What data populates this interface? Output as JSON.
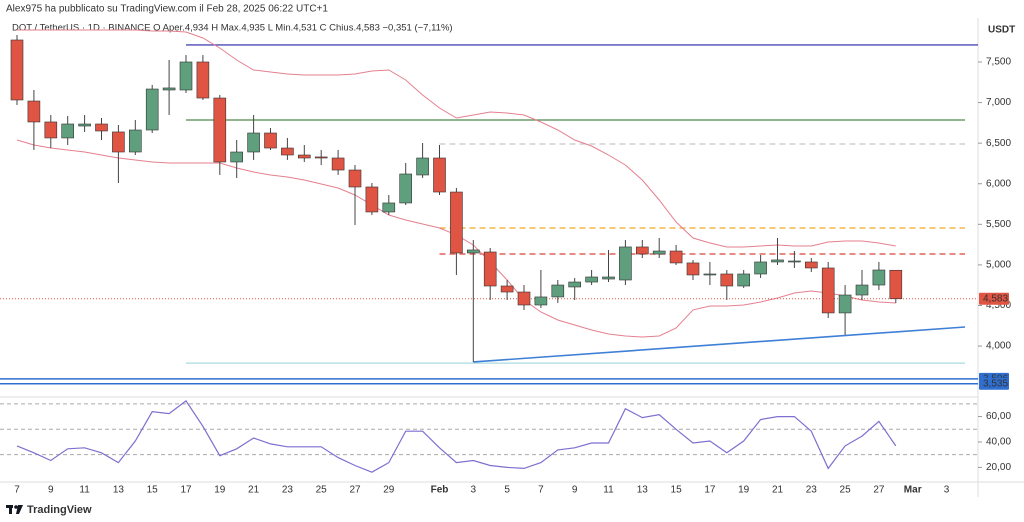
{
  "header": {
    "publisher": "Alex975 ha pubblicato su TradingView.com il Feb 28, 2025 06:22 UTC+1",
    "symbol": "DOT / TetherUS · 1D · BINANCE  O  Aper.4,934  H  Max.4,935  L  Min.4,531  C  Chius.4,583  −0,351 (−7,11%)"
  },
  "footer": {
    "brand": "TradingView"
  },
  "chart_data": {
    "type": "candlestick",
    "axis_label": "USDT",
    "up_color": "#5f9f7d",
    "down_color": "#e05444",
    "xlabels": [
      "7",
      "9",
      "11",
      "13",
      "15",
      "17",
      "19",
      "21",
      "23",
      "25",
      "27",
      "29",
      "Feb",
      "3",
      "5",
      "7",
      "9",
      "11",
      "13",
      "15",
      "17",
      "19",
      "21",
      "23",
      "25",
      "27",
      "Mar",
      "3"
    ],
    "open": [
      7.771,
      7.019,
      6.761,
      6.564,
      6.711,
      6.736,
      6.638,
      6.391,
      6.662,
      7.155,
      7.155,
      7.5,
      7.056,
      6.268,
      6.391,
      6.625,
      6.44,
      6.354,
      6.33,
      6.317,
      6.169,
      5.96,
      5.652,
      5.763,
      6.108,
      6.317,
      5.898,
      5.147,
      5.159,
      4.74,
      4.666,
      4.506,
      4.605,
      4.728,
      4.789,
      4.826,
      4.814,
      5.221,
      5.134,
      5.171,
      5.024,
      4.888,
      4.888,
      4.74,
      4.888,
      5.036,
      5.048,
      5.036,
      4.962,
      4.408,
      4.629,
      4.752,
      4.934
    ],
    "high": [
      7.833,
      7.155,
      6.847,
      6.835,
      6.847,
      6.81,
      6.724,
      6.785,
      7.217,
      7.525,
      7.586,
      7.586,
      7.093,
      6.539,
      6.847,
      6.687,
      6.564,
      6.477,
      6.416,
      6.416,
      6.231,
      6.009,
      5.861,
      6.256,
      6.502,
      6.477,
      5.948,
      5.307,
      5.208,
      4.814,
      4.752,
      4.937,
      4.814,
      4.839,
      4.937,
      5.184,
      5.307,
      5.307,
      5.332,
      5.245,
      5.061,
      5.036,
      4.937,
      4.937,
      5.122,
      5.332,
      5.171,
      5.085,
      5.036,
      4.752,
      4.937,
      5.036,
      4.935
    ],
    "low": [
      6.97,
      6.416,
      6.44,
      6.477,
      6.638,
      6.539,
      6.009,
      6.354,
      6.625,
      6.847,
      7.118,
      7.032,
      6.108,
      6.071,
      6.293,
      6.416,
      6.293,
      6.268,
      6.231,
      6.108,
      5.492,
      5.615,
      5.615,
      5.738,
      6.071,
      5.861,
      4.876,
      3.804,
      4.568,
      4.568,
      4.445,
      4.469,
      4.531,
      4.568,
      4.752,
      4.789,
      4.752,
      5.085,
      5.085,
      4.999,
      4.814,
      4.752,
      4.568,
      4.715,
      4.839,
      4.999,
      4.962,
      4.913,
      4.346,
      4.137,
      4.568,
      4.691,
      4.531
    ],
    "close": [
      7.032,
      6.761,
      6.564,
      6.736,
      6.736,
      6.65,
      6.391,
      6.662,
      7.167,
      7.18,
      7.5,
      7.056,
      6.268,
      6.391,
      6.625,
      6.44,
      6.354,
      6.317,
      6.317,
      6.169,
      5.96,
      5.652,
      5.763,
      6.12,
      6.317,
      5.898,
      5.147,
      5.184,
      4.74,
      4.666,
      4.506,
      4.605,
      4.752,
      4.789,
      4.851,
      4.851,
      5.221,
      5.134,
      5.171,
      5.024,
      4.876,
      4.888,
      4.74,
      4.888,
      5.036,
      5.061,
      5.048,
      4.962,
      4.408,
      4.629,
      4.752,
      4.937,
      4.583
    ],
    "bands": {
      "color": "#e57f8f",
      "upper": [
        7.894,
        7.894,
        7.894,
        7.894,
        7.894,
        7.894,
        7.894,
        7.894,
        7.882,
        7.882,
        7.87,
        7.796,
        7.672,
        7.525,
        7.401,
        7.377,
        7.352,
        7.34,
        7.34,
        7.34,
        7.352,
        7.389,
        7.401,
        7.278,
        7.093,
        6.933,
        6.81,
        6.847,
        6.884,
        6.872,
        6.847,
        6.761,
        6.662,
        6.539,
        6.465,
        6.354,
        6.231,
        6.046,
        5.8,
        5.529,
        5.332,
        5.27,
        5.221,
        5.221,
        5.233,
        5.245,
        5.233,
        5.233,
        5.282,
        5.295,
        5.295,
        5.27,
        5.233
      ],
      "lower": [
        6.539,
        6.477,
        6.44,
        6.416,
        6.391,
        6.354,
        6.317,
        6.293,
        6.268,
        6.256,
        6.256,
        6.256,
        6.256,
        6.194,
        6.145,
        6.108,
        6.083,
        6.046,
        5.997,
        5.948,
        5.861,
        5.738,
        5.615,
        5.553,
        5.504,
        5.455,
        5.369,
        5.245,
        5.036,
        4.814,
        4.568,
        4.42,
        4.321,
        4.26,
        4.198,
        4.149,
        4.124,
        4.112,
        4.124,
        4.223,
        4.445,
        4.494,
        4.494,
        4.506,
        4.543,
        4.592,
        4.654,
        4.678,
        4.654,
        4.617,
        4.568,
        4.543,
        4.531
      ]
    },
    "levels": [
      {
        "value": 7.71,
        "color": "#4b4bb5",
        "dash": false
      },
      {
        "value": 6.785,
        "color": "#4e8a4e",
        "dash": false
      },
      {
        "value": 6.49,
        "color": "#c8c8c8",
        "dash": true
      },
      {
        "value": 5.455,
        "color": "#f5a623",
        "dash": true
      },
      {
        "value": 5.134,
        "color": "#d9443a",
        "dash": true
      },
      {
        "value": 3.79,
        "color": "#a8dcdf",
        "dash": false
      }
    ],
    "trendline": {
      "from": 3.804,
      "to": 4.235,
      "color": "#3f7fd6"
    },
    "price_labels": [
      {
        "value": 4.583,
        "label": "4,583",
        "color": "#e05444"
      },
      {
        "value": 3.596,
        "label": "3,596",
        "color": "#2f6fd0"
      },
      {
        "value": 3.535,
        "label": "3,535",
        "color": "#2f6fd0"
      }
    ],
    "ylim": [
      3.397,
      8.042
    ],
    "yticks": [
      {
        "value": 4,
        "label": "4,000"
      },
      {
        "value": 4.5,
        "label": "4,500"
      },
      {
        "value": 5,
        "label": "5,000"
      },
      {
        "value": 5.5,
        "label": "5,500"
      },
      {
        "value": 6,
        "label": "6,000"
      },
      {
        "value": 6.5,
        "label": "6,500"
      },
      {
        "value": 7,
        "label": "7,000"
      },
      {
        "value": 7.5,
        "label": "7,500"
      }
    ],
    "rsi": {
      "color": "#7e6fd0",
      "values": [
        36.9,
        31.5,
        25.4,
        34.6,
        35.4,
        31.5,
        23.8,
        40.8,
        63.8,
        62.3,
        72.3,
        52.3,
        29.2,
        34.6,
        43.1,
        38.5,
        36.2,
        36.2,
        36.2,
        27.7,
        21.5,
        16.2,
        23.8,
        48.5,
        48.5,
        35.4,
        23.8,
        25.4,
        21.5,
        20.0,
        19.2,
        23.8,
        33.8,
        35.4,
        39.2,
        39.2,
        66.2,
        59.2,
        61.5,
        50,
        39.2,
        40.8,
        31.5,
        40.8,
        57.7,
        60,
        60,
        48.5,
        19.2,
        36.9,
        44.6,
        56.2,
        36.9
      ],
      "ylim": [
        8.5,
        75.4
      ],
      "yticks": [
        {
          "value": 20,
          "label": "20,00"
        },
        {
          "value": 40,
          "label": "40,00"
        },
        {
          "value": 60,
          "label": "60,00"
        }
      ],
      "levels": [
        70,
        50,
        30
      ]
    }
  }
}
